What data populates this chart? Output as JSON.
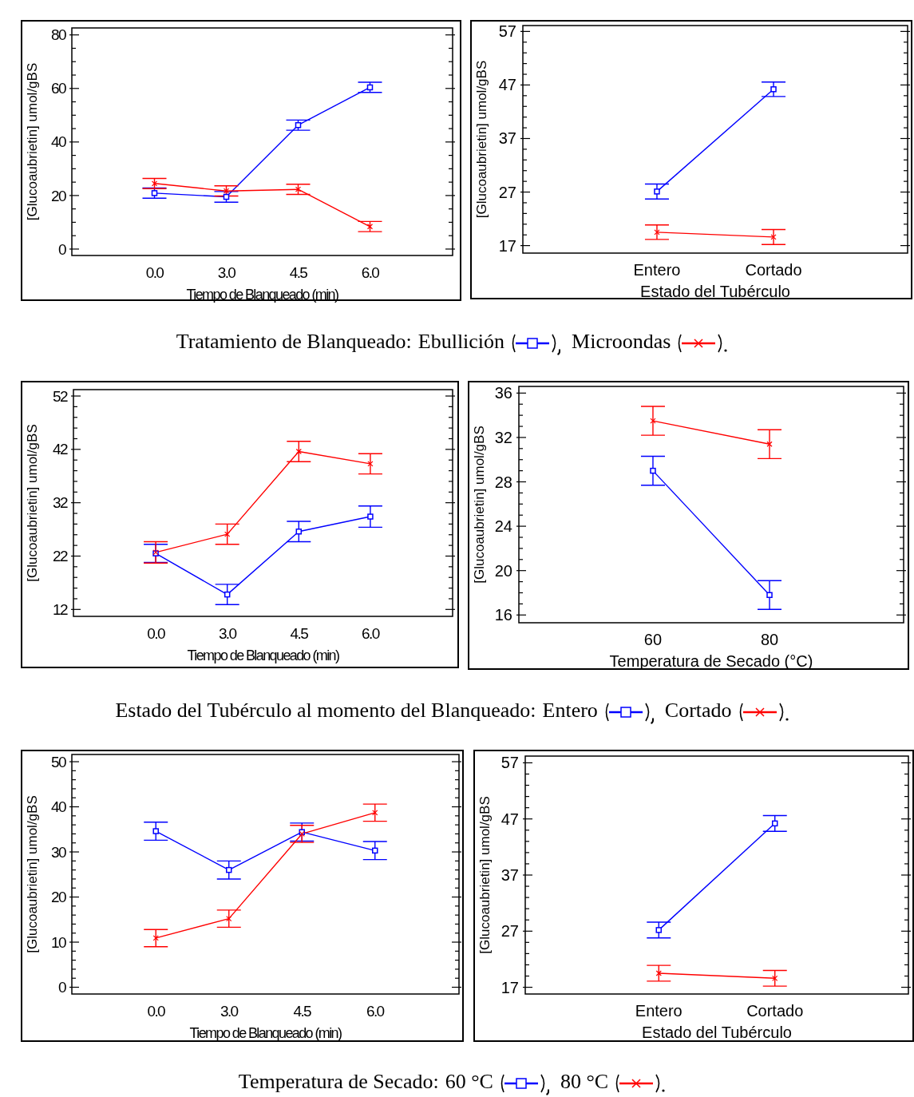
{
  "chart_data": [
    {
      "type": "line",
      "xlabel": "Tiempo de Blanqueado (min)",
      "ylabel": "[Glucoaubrietin] umol/gBS",
      "legend": "bottom",
      "legend_title": "Tratamiento de Blanqueado:",
      "line_style": "solid",
      "categories": [
        "0.0",
        "3.0",
        "4.5",
        "6.0"
      ],
      "ylim": [
        -2.4,
        82.6
      ],
      "yticks": [
        0,
        {
          "value": 5,
          "label": null
        },
        {
          "value": 10,
          "label": null
        },
        {
          "value": 15,
          "label": null
        },
        20,
        {
          "value": 25,
          "label": null
        },
        {
          "value": 30,
          "label": null
        },
        {
          "value": 35,
          "label": null
        },
        40,
        {
          "value": 45,
          "label": null
        },
        {
          "value": 50,
          "label": null
        },
        {
          "value": 55,
          "label": null
        },
        60,
        {
          "value": 65,
          "label": null
        },
        {
          "value": 70,
          "label": null
        },
        {
          "value": 75,
          "label": null
        },
        80
      ],
      "series": [
        {
          "name": "Ebullición",
          "color": "#0000ff",
          "marker": "square",
          "values": [
            20.9,
            19.5,
            46.3,
            60.4
          ],
          "errors": [
            1.9,
            2.0,
            1.9,
            1.9
          ]
        },
        {
          "name": "Microondas",
          "color": "#ff0000",
          "marker": "cross",
          "values": [
            24.5,
            21.7,
            22.3,
            8.4
          ],
          "errors": [
            1.9,
            1.9,
            1.9,
            1.9
          ]
        }
      ]
    },
    {
      "type": "line",
      "xlabel": "Estado del Tubérculo",
      "ylabel": "[Glucoaubrietin] umol/gBS",
      "line_style": "solid",
      "categories": [
        "Entero",
        "Cortado"
      ],
      "ylim": [
        15.6,
        58.1
      ],
      "yticks": [
        17,
        {
          "value": 19,
          "label": null
        },
        {
          "value": 21,
          "label": null
        },
        {
          "value": 23,
          "label": null
        },
        {
          "value": 25,
          "label": null
        },
        27,
        {
          "value": 29,
          "label": null
        },
        {
          "value": 31,
          "label": null
        },
        {
          "value": 33,
          "label": null
        },
        {
          "value": 35,
          "label": null
        },
        37,
        {
          "value": 39,
          "label": null
        },
        {
          "value": 41,
          "label": null
        },
        {
          "value": 43,
          "label": null
        },
        {
          "value": 45,
          "label": null
        },
        47,
        {
          "value": 49,
          "label": null
        },
        {
          "value": 51,
          "label": null
        },
        {
          "value": 53,
          "label": null
        },
        {
          "value": 55,
          "label": null
        },
        57
      ],
      "series": [
        {
          "color": "#0000ff",
          "marker": "square",
          "values": [
            27.1,
            46.2
          ],
          "errors": [
            1.4,
            1.35
          ]
        },
        {
          "color": "#ff0000",
          "marker": "cross",
          "values": [
            19.5,
            18.6
          ],
          "errors": [
            1.35,
            1.4
          ]
        }
      ]
    },
    {
      "type": "line",
      "xlabel": "Tiempo de Blanqueado (min)",
      "ylabel": "[Glucoaubrietin] umol/gBS",
      "legend": "bottom",
      "legend_title": "Estado del Tubérculo al momento del Blanqueado:",
      "line_style": "solid",
      "categories": [
        "0.0",
        "3.0",
        "4.5",
        "6.0"
      ],
      "ylim": [
        10.7,
        53.2
      ],
      "yticks": [
        12,
        {
          "value": 14,
          "label": null
        },
        {
          "value": 16,
          "label": null
        },
        {
          "value": 18,
          "label": null
        },
        {
          "value": 20,
          "label": null
        },
        22,
        {
          "value": 24,
          "label": null
        },
        {
          "value": 26,
          "label": null
        },
        {
          "value": 28,
          "label": null
        },
        {
          "value": 30,
          "label": null
        },
        32,
        {
          "value": 34,
          "label": null
        },
        {
          "value": 36,
          "label": null
        },
        {
          "value": 38,
          "label": null
        },
        {
          "value": 40,
          "label": null
        },
        42,
        {
          "value": 44,
          "label": null
        },
        {
          "value": 46,
          "label": null
        },
        {
          "value": 48,
          "label": null
        },
        {
          "value": 50,
          "label": null
        },
        52
      ],
      "series": [
        {
          "name": "Entero",
          "color": "#0000ff",
          "marker": "square",
          "values": [
            22.5,
            14.8,
            26.6,
            29.4
          ],
          "errors": [
            1.7,
            1.9,
            1.9,
            2.0
          ]
        },
        {
          "name": "Cortado",
          "color": "#ff0000",
          "marker": "cross",
          "values": [
            22.7,
            26.1,
            41.6,
            39.3
          ],
          "errors": [
            2.0,
            1.9,
            1.9,
            1.9
          ]
        }
      ]
    },
    {
      "type": "line",
      "xlabel": "Temperatura de Secado (°C)",
      "ylabel": "[Glucoaubrietin] umol/gBS",
      "line_style": "solid",
      "categories": [
        "60",
        "80"
      ],
      "ylim": [
        15.3,
        36.6
      ],
      "yticks": [
        16,
        {
          "value": 17,
          "label": null
        },
        {
          "value": 18,
          "label": null
        },
        {
          "value": 19,
          "label": null
        },
        20,
        {
          "value": 21,
          "label": null
        },
        {
          "value": 22,
          "label": null
        },
        {
          "value": 23,
          "label": null
        },
        24,
        {
          "value": 25,
          "label": null
        },
        {
          "value": 26,
          "label": null
        },
        {
          "value": 27,
          "label": null
        },
        28,
        {
          "value": 29,
          "label": null
        },
        {
          "value": 30,
          "label": null
        },
        {
          "value": 31,
          "label": null
        },
        32,
        {
          "value": 33,
          "label": null
        },
        {
          "value": 34,
          "label": null
        },
        {
          "value": 35,
          "label": null
        },
        36
      ],
      "series": [
        {
          "color": "#0000ff",
          "marker": "square",
          "values": [
            29.0,
            17.8
          ],
          "errors": [
            1.3,
            1.3
          ]
        },
        {
          "color": "#ff0000",
          "marker": "cross",
          "values": [
            33.5,
            31.4
          ],
          "errors": [
            1.3,
            1.3
          ]
        }
      ]
    },
    {
      "type": "line",
      "xlabel": "Tiempo de Blanqueado (min)",
      "ylabel": "[Glucoaubrietin] umol/gBS",
      "legend": "bottom",
      "legend_title": "Temperatura de Secado:",
      "line_style": "solid",
      "categories": [
        "0.0",
        "3.0",
        "4.5",
        "6.0"
      ],
      "ylim": [
        -1.5,
        51.6
      ],
      "yticks": [
        0,
        {
          "value": 2,
          "label": null
        },
        {
          "value": 4,
          "label": null
        },
        {
          "value": 6,
          "label": null
        },
        {
          "value": 8,
          "label": null
        },
        10,
        {
          "value": 12,
          "label": null
        },
        {
          "value": 14,
          "label": null
        },
        {
          "value": 16,
          "label": null
        },
        {
          "value": 18,
          "label": null
        },
        20,
        {
          "value": 22,
          "label": null
        },
        {
          "value": 24,
          "label": null
        },
        {
          "value": 26,
          "label": null
        },
        {
          "value": 28,
          "label": null
        },
        30,
        {
          "value": 32,
          "label": null
        },
        {
          "value": 34,
          "label": null
        },
        {
          "value": 36,
          "label": null
        },
        {
          "value": 38,
          "label": null
        },
        40,
        {
          "value": 42,
          "label": null
        },
        {
          "value": 44,
          "label": null
        },
        {
          "value": 46,
          "label": null
        },
        {
          "value": 48,
          "label": null
        },
        50
      ],
      "series": [
        {
          "name": "60 °C",
          "color": "#0000ff",
          "marker": "square",
          "values": [
            34.6,
            26.0,
            34.4,
            30.3
          ],
          "errors": [
            2.0,
            2.0,
            2.0,
            2.0
          ]
        },
        {
          "name": "80 °C",
          "color": "#ff0000",
          "marker": "cross",
          "values": [
            10.9,
            15.2,
            34.0,
            38.7
          ],
          "errors": [
            1.9,
            1.9,
            1.9,
            1.9
          ]
        }
      ]
    },
    {
      "type": "line",
      "xlabel": "Estado del Tubérculo",
      "ylabel": "[Glucoaubrietin] umol/gBS",
      "line_style": "solid",
      "categories": [
        "Entero",
        "Cortado"
      ],
      "ylim": [
        15.8,
        58.2
      ],
      "yticks": [
        17,
        {
          "value": 19,
          "label": null
        },
        {
          "value": 21,
          "label": null
        },
        {
          "value": 23,
          "label": null
        },
        {
          "value": 25,
          "label": null
        },
        27,
        {
          "value": 29,
          "label": null
        },
        {
          "value": 31,
          "label": null
        },
        {
          "value": 33,
          "label": null
        },
        {
          "value": 35,
          "label": null
        },
        37,
        {
          "value": 39,
          "label": null
        },
        {
          "value": 41,
          "label": null
        },
        {
          "value": 43,
          "label": null
        },
        {
          "value": 45,
          "label": null
        },
        47,
        {
          "value": 49,
          "label": null
        },
        {
          "value": 51,
          "label": null
        },
        {
          "value": 53,
          "label": null
        },
        {
          "value": 55,
          "label": null
        },
        57
      ],
      "series": [
        {
          "color": "#0000ff",
          "marker": "square",
          "values": [
            27.2,
            46.2
          ],
          "errors": [
            1.4,
            1.4
          ]
        },
        {
          "color": "#ff0000",
          "marker": "cross",
          "values": [
            19.5,
            18.6
          ],
          "errors": [
            1.4,
            1.4
          ]
        }
      ]
    }
  ]
}
